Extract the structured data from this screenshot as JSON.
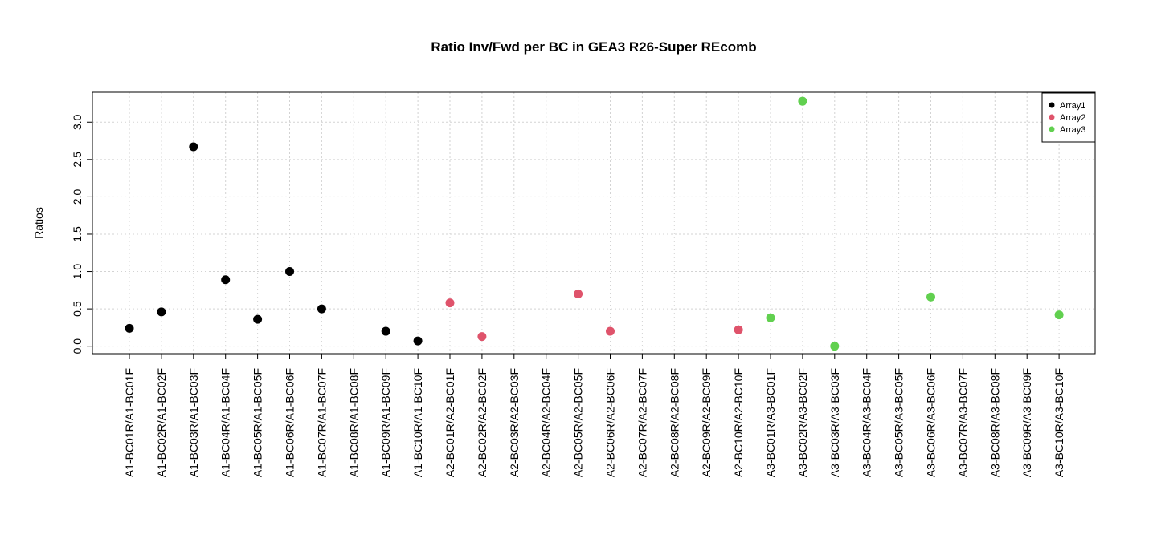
{
  "chart_data": {
    "type": "scatter",
    "title": "Ratio Inv/Fwd per BC in GEA3 R26-Super REcomb",
    "xlabel": "",
    "ylabel": "Ratios",
    "categories": [
      "A1-BC01R/A1-BC01F",
      "A1-BC02R/A1-BC02F",
      "A1-BC03R/A1-BC03F",
      "A1-BC04R/A1-BC04F",
      "A1-BC05R/A1-BC05F",
      "A1-BC06R/A1-BC06F",
      "A1-BC07R/A1-BC07F",
      "A1-BC08R/A1-BC08F",
      "A1-BC09R/A1-BC09F",
      "A1-BC10R/A1-BC10F",
      "A2-BC01R/A2-BC01F",
      "A2-BC02R/A2-BC02F",
      "A2-BC03R/A2-BC03F",
      "A2-BC04R/A2-BC04F",
      "A2-BC05R/A2-BC05F",
      "A2-BC06R/A2-BC06F",
      "A2-BC07R/A2-BC07F",
      "A2-BC08R/A2-BC08F",
      "A2-BC09R/A2-BC09F",
      "A2-BC10R/A2-BC10F",
      "A3-BC01R/A3-BC01F",
      "A3-BC02R/A3-BC02F",
      "A3-BC03R/A3-BC03F",
      "A3-BC04R/A3-BC04F",
      "A3-BC05R/A3-BC05F",
      "A3-BC06R/A3-BC06F",
      "A3-BC07R/A3-BC07F",
      "A3-BC08R/A3-BC08F",
      "A3-BC09R/A3-BC09F",
      "A3-BC10R/A3-BC10F"
    ],
    "series": [
      {
        "name": "Array1",
        "color": "#000000",
        "values": [
          0.24,
          0.46,
          2.67,
          0.89,
          0.36,
          1.0,
          0.5,
          null,
          0.2,
          0.07,
          null,
          null,
          null,
          null,
          null,
          null,
          null,
          null,
          null,
          null,
          null,
          null,
          null,
          null,
          null,
          null,
          null,
          null,
          null,
          null
        ]
      },
      {
        "name": "Array2",
        "color": "#DF536B",
        "values": [
          null,
          null,
          null,
          null,
          null,
          null,
          null,
          null,
          null,
          null,
          0.58,
          0.13,
          null,
          null,
          0.7,
          0.2,
          null,
          null,
          null,
          0.22,
          null,
          null,
          null,
          null,
          null,
          null,
          null,
          null,
          null,
          null
        ]
      },
      {
        "name": "Array3",
        "color": "#61D04F",
        "values": [
          null,
          null,
          null,
          null,
          null,
          null,
          null,
          null,
          null,
          null,
          null,
          null,
          null,
          null,
          null,
          null,
          null,
          null,
          null,
          null,
          0.38,
          3.28,
          0.0,
          null,
          null,
          0.66,
          null,
          null,
          null,
          0.42
        ]
      }
    ],
    "yticks": [
      "0.0",
      "0.5",
      "1.0",
      "1.5",
      "2.0",
      "2.5",
      "3.0"
    ],
    "ylim": [
      -0.1,
      3.4
    ],
    "grid": true,
    "legend_position": "top-right"
  }
}
